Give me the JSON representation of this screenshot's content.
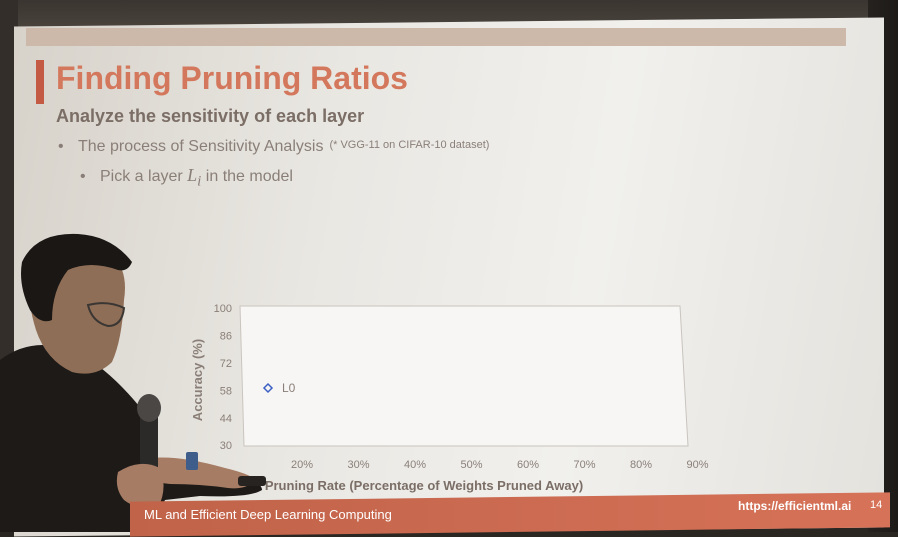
{
  "slide": {
    "title": "Finding Pruning Ratios",
    "subtitle": "Analyze the sensitivity of each layer",
    "bullet_main": "The process of Sensitivity Analysis",
    "bullet_note": "(* VGG-11 on CIFAR-10 dataset)",
    "sub_bullet_prefix": "Pick a layer",
    "sub_bullet_var": "L",
    "sub_bullet_sub": "i",
    "sub_bullet_suffix": "in the model",
    "bullet_symbol": "•"
  },
  "chart_data": {
    "type": "scatter",
    "xlabel": "Pruning Rate (Percentage of Weights Pruned Away)",
    "ylabel": "Accuracy (%)",
    "x_ticks": [
      "20%",
      "30%",
      "40%",
      "50%",
      "60%",
      "70%",
      "80%",
      "90%"
    ],
    "y_ticks": [
      "100",
      "86",
      "72",
      "58",
      "44",
      "30"
    ],
    "ylim": [
      30,
      100
    ],
    "xlim": [
      10,
      90
    ],
    "legend": [
      {
        "name": "L0",
        "marker": "diamond",
        "color": "#3b5fc2"
      }
    ],
    "series": [
      {
        "name": "L0",
        "points": []
      }
    ],
    "legend_placement": "left"
  },
  "footer": {
    "text": "ML and Efficient Deep Learning Computing",
    "url": "https://efficientml.ai",
    "page": "14"
  },
  "colors": {
    "title": "#d4785d",
    "accent": "#c45a44",
    "footer": "#c8664b",
    "legend_marker": "#3b5fc2"
  }
}
